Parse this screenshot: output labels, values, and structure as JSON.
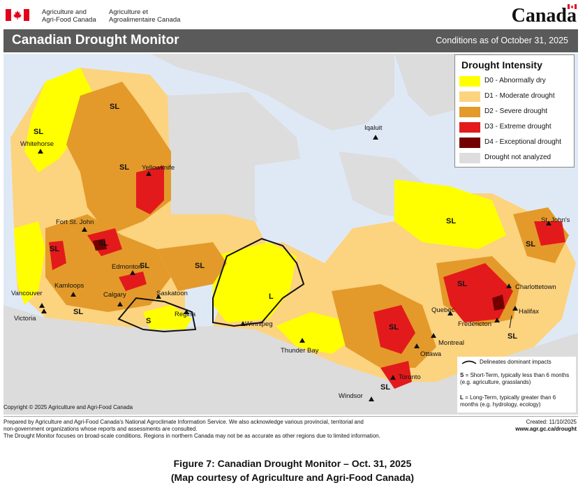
{
  "header": {
    "dept_en_line1": "Agriculture and",
    "dept_en_line2": "Agri-Food Canada",
    "dept_fr_line1": "Agriculture et",
    "dept_fr_line2": "Agroalimentaire Canada",
    "wordmark": "Canada"
  },
  "title": "Canadian Drought Monitor",
  "conditions": "Conditions as of October 31, 2025",
  "legend": {
    "title": "Drought Intensity",
    "items": [
      {
        "label": "D0 - Abnormally dry",
        "color": "#ffff00"
      },
      {
        "label": "D1 - Moderate drought",
        "color": "#fcd37f"
      },
      {
        "label": "D2 - Severe drought",
        "color": "#e39a2a"
      },
      {
        "label": "D3 - Extreme drought",
        "color": "#e31a1c"
      },
      {
        "label": "D4 - Exceptional drought",
        "color": "#730000"
      },
      {
        "label": "Drought not analyzed",
        "color": "#dddddd"
      }
    ]
  },
  "cities": {
    "whitehorse": "Whitehorse",
    "yellowknife": "Yellowknife",
    "iqaluit": "Iqaluit",
    "fort_st_john": "Fort St. John",
    "edmonton": "Edmonton",
    "kamloops": "Kamloops",
    "vancouver": "Vancouver",
    "victoria": "Victoria",
    "calgary": "Calgary",
    "saskatoon": "Saskatoon",
    "regina": "Regina",
    "winnipeg": "Winnipeg",
    "thunder_bay": "Thunder Bay",
    "windsor": "Windsor",
    "toronto": "Toronto",
    "ottawa": "Ottawa",
    "montreal": "Montreal",
    "quebec": "Quebec",
    "fredericton": "Fredericton",
    "halifax": "Halifax",
    "charlottetown": "Charlottetown",
    "st_johns": "St. John's"
  },
  "impact_labels": {
    "sl": "SL",
    "s": "S",
    "l": "L"
  },
  "impact_notes": {
    "delineates": "Delineates dominant impacts",
    "s_key": "S",
    "s_text": "= Short-Term, typically less than 6 months (e.g. agriculture, grasslands)",
    "l_key": "L",
    "l_text": "= Long-Term, typically greater than 6 months (e.g. hydrology, ecology)"
  },
  "copyright": "Copyright © 2025 Agriculture and Agri-Food Canada",
  "footer": {
    "line1": "Prepared by Agriculture and Agri-Food Canada's National Agroclimate Information Service.  We also acknowledge various provincial, territorial and",
    "line2": "non-government organizations whose reports and assessments are consulted.",
    "line3": "The Drought Monitor focuses on broad-scale conditions.  Regions in northern Canada may not be as accurate as other regions due to limited information.",
    "created": "Created: 11/10/2025",
    "url": "www.agr.gc.ca/drought"
  },
  "caption": {
    "line1": "Figure 7: Canadian Drought Monitor – Oct. 31, 2025",
    "line2": "(Map courtesy of Agriculture and Agri-Food Canada)"
  }
}
